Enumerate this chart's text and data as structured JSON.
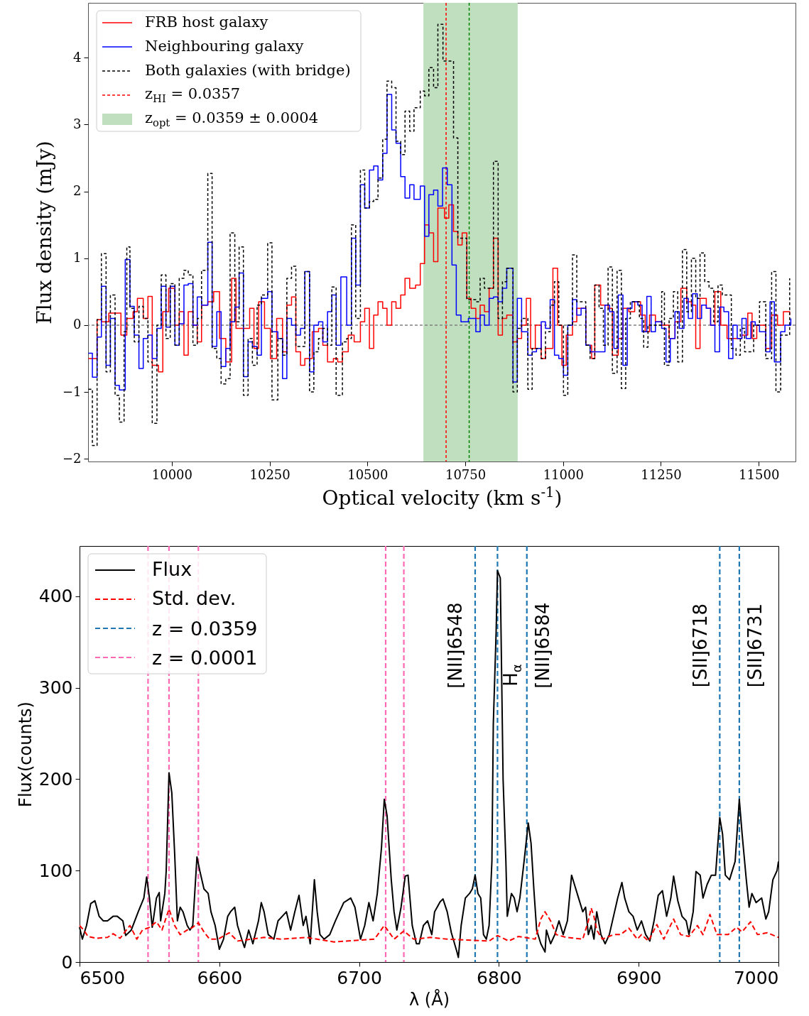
{
  "chart_data": [
    {
      "type": "step",
      "xlabel": "Optical velocity (km s$^{-1}$)",
      "ylabel": "Flux density (mJy)",
      "xlim": [
        9786,
        11594
      ],
      "ylim": [
        -2.04,
        4.82
      ],
      "xticks": [
        10000,
        10250,
        10500,
        10750,
        11000,
        11250,
        11500
      ],
      "yticks": [
        -2,
        -1,
        0,
        1,
        2,
        3,
        4
      ],
      "grid": false,
      "legend": "top left",
      "series": [
        {
          "name": "FRB host galaxy",
          "color": "#ff0000",
          "line_style": "solid",
          "x": [
            9787,
            9809,
            9820,
            9839,
            9870,
            9885,
            9901,
            9912,
            9927,
            9939,
            9950,
            9966,
            9977,
            9992,
            10008,
            10019,
            10031,
            10042,
            10054,
            10065,
            10076,
            10092,
            10107,
            10122,
            10138,
            10153,
            10164,
            10187,
            10199,
            10210,
            10222,
            10237,
            10252,
            10268,
            10283,
            10294,
            10306,
            10317,
            10329,
            10340,
            10359,
            10375,
            10386,
            10398,
            10413,
            10424,
            10436,
            10451,
            10466,
            10482,
            10493,
            10505,
            10516,
            10527,
            10539,
            10550,
            10562,
            10573,
            10585,
            10596,
            10608,
            10623,
            10635,
            10646,
            10657,
            10669,
            10680,
            10697,
            10708,
            10720,
            10731,
            10742,
            10754,
            10765,
            10777,
            10788,
            10799,
            10811,
            10822,
            10834,
            10845,
            10856,
            10872,
            10883,
            10894,
            10906,
            10917,
            10929,
            10944,
            10955,
            10974,
            10986,
            10997,
            11008,
            11024,
            11035,
            11058,
            11073,
            11081,
            11096,
            11115,
            11126,
            11141,
            11153,
            11168,
            11183,
            11198,
            11210,
            11221,
            11236,
            11252,
            11271,
            11286,
            11301,
            11316,
            11328,
            11339,
            11350,
            11366,
            11377,
            11388,
            11403,
            11419,
            11434,
            11457,
            11472,
            11483,
            11495,
            11518,
            11533,
            11548,
            11563,
            11579
          ],
          "values": [
            -0.5,
            0.08,
            0.05,
            0.18,
            -0.15,
            0.1,
            0.2,
            0.4,
            0.1,
            0.43,
            -0.6,
            -0.7,
            0.2,
            0.55,
            0.0,
            0.2,
            -0.45,
            0.2,
            0.0,
            -0.25,
            0.3,
            0.35,
            0.5,
            -0.2,
            -0.55,
            0.7,
            -0.05,
            -0.05,
            0.25,
            -0.35,
            0.35,
            -0.05,
            -0.5,
            0.1,
            -0.4,
            0.3,
            0.42,
            -0.4,
            -0.6,
            -0.5,
            -0.1,
            -0.05,
            -0.3,
            -0.55,
            -0.5,
            -0.55,
            -0.4,
            -0.15,
            -0.25,
            0.05,
            0.25,
            -0.35,
            0.15,
            0.35,
            0.25,
            0.0,
            0.35,
            0.25,
            0.45,
            0.7,
            0.55,
            0.6,
            0.92,
            1.5,
            1.38,
            0.95,
            1.75,
            1.6,
            1.8,
            1.4,
            1.2,
            1.38,
            0.4,
            0.25,
            0.1,
            0.3,
            0.2,
            0.55,
            1.3,
            -0.15,
            0.1,
            0.15,
            -0.25,
            -0.2,
            0.0,
            0.4,
            -0.35,
            0.0,
            -0.5,
            -0.35,
            0.85,
            0.0,
            -0.6,
            -0.15,
            0.05,
            0.25,
            -0.3,
            -0.5,
            0.6,
            0.3,
            0.25,
            -0.45,
            -0.2,
            0.25,
            0.2,
            0.35,
            0.15,
            -0.1,
            0.15,
            0.05,
            0.0,
            -0.2,
            0.05,
            0.55,
            0.35,
            0.3,
            -0.35,
            0.4,
            0.25,
            0.0,
            0.5,
            0.0,
            -0.2,
            -0.2,
            -0.15,
            0.18,
            -0.2,
            0.0,
            -0.35,
            0.15,
            0.0,
            0.2,
            0.15
          ]
        },
        {
          "name": "Neighbouring galaxy",
          "color": "#0000ff",
          "line_style": "solid",
          "x": [
            9787,
            9797,
            9809,
            9820,
            9832,
            9843,
            9855,
            9866,
            9881,
            9893,
            9904,
            9916,
            9927,
            9939,
            9950,
            9962,
            9973,
            9985,
            9996,
            10008,
            10019,
            10031,
            10042,
            10054,
            10065,
            10076,
            10092,
            10103,
            10115,
            10126,
            10138,
            10149,
            10161,
            10172,
            10183,
            10195,
            10206,
            10218,
            10229,
            10245,
            10256,
            10271,
            10283,
            10294,
            10306,
            10317,
            10329,
            10340,
            10352,
            10363,
            10375,
            10386,
            10398,
            10409,
            10420,
            10432,
            10447,
            10459,
            10470,
            10482,
            10493,
            10505,
            10516,
            10527,
            10539,
            10550,
            10562,
            10573,
            10585,
            10596,
            10608,
            10619,
            10635,
            10646,
            10657,
            10669,
            10680,
            10692,
            10704,
            10716,
            10727,
            10739,
            10758,
            10777,
            10788,
            10799,
            10811,
            10822,
            10834,
            10845,
            10856,
            10872,
            10883,
            10894,
            10910,
            10921,
            10932,
            10944,
            10955,
            10967,
            10978,
            10989,
            11001,
            11012,
            11024,
            11035,
            11046,
            11058,
            11069,
            11081,
            11092,
            11107,
            11119,
            11130,
            11141,
            11153,
            11164,
            11176,
            11191,
            11202,
            11214,
            11225,
            11236,
            11252,
            11263,
            11274,
            11286,
            11297,
            11309,
            11320,
            11331,
            11343,
            11354,
            11366,
            11377,
            11388,
            11400,
            11411,
            11423,
            11434,
            11445,
            11457,
            11468,
            11480,
            11491,
            11502,
            11518,
            11529,
            11540,
            11556,
            11567,
            11582
          ],
          "values": [
            -0.42,
            -0.78,
            -0.18,
            0.58,
            -0.6,
            0.1,
            -0.9,
            -0.97,
            0.98,
            0.28,
            -0.15,
            -0.65,
            -0.2,
            -0.15,
            -0.5,
            -0.05,
            0.58,
            -0.03,
            0.58,
            -0.3,
            0.02,
            0.6,
            0.62,
            0.0,
            0.42,
            0.3,
            1.24,
            -0.32,
            0.2,
            -0.62,
            -0.35,
            0.05,
            0.27,
            0.78,
            -0.77,
            -0.25,
            -0.32,
            -0.45,
            0.4,
            0.5,
            -0.1,
            -0.2,
            -0.8,
            0.1,
            0.0,
            -0.15,
            -0.05,
            0.8,
            -0.7,
            0.0,
            0.05,
            -0.25,
            0.2,
            0.45,
            -0.3,
            0.72,
            0.0,
            1.3,
            0.6,
            2.1,
            1.75,
            2.32,
            2.38,
            2.17,
            2.57,
            3.45,
            2.92,
            2.72,
            2.22,
            1.9,
            2.1,
            1.88,
            2.08,
            1.33,
            1.95,
            2.02,
            1.78,
            2.35,
            2.1,
            0.9,
            0.15,
            0.05,
            0.1,
            -0.1,
            0.15,
            0.0,
            0.4,
            0.42,
            0.35,
            0.55,
            0.85,
            -0.85,
            0.4,
            -0.1,
            -0.45,
            -0.4,
            -0.35,
            0.05,
            -0.05,
            0.38,
            -0.45,
            -0.5,
            -0.75,
            0.0,
            0.38,
            0.15,
            0.25,
            -0.3,
            -0.4,
            -0.4,
            -0.4,
            0.3,
            0.2,
            -0.35,
            0.45,
            -0.6,
            0.25,
            0.35,
            0.3,
            -0.1,
            0.43,
            -0.1,
            0.05,
            -0.05,
            -0.55,
            -0.2,
            0.2,
            -0.05,
            0.4,
            0.1,
            0.47,
            0.1,
            0.3,
            0.25,
            0.0,
            -0.4,
            0.27,
            0.2,
            -0.5,
            0.0,
            -0.2,
            0.1,
            -0.2,
            0.05,
            0.0,
            -0.1,
            -0.4,
            0.35,
            -0.55,
            -0.1,
            0.0,
            0.1
          ]
        },
        {
          "name": "Both galaxies (with bridge)",
          "color": "#000000",
          "line_style": "dashed",
          "x": [
            9787,
            9797,
            9809,
            9820,
            9832,
            9843,
            9855,
            9866,
            9878,
            9885,
            9893,
            9904,
            9916,
            9927,
            9939,
            9950,
            9962,
            9973,
            9985,
            9996,
            10008,
            10019,
            10031,
            10042,
            10054,
            10065,
            10076,
            10092,
            10103,
            10115,
            10126,
            10138,
            10149,
            10161,
            10172,
            10183,
            10195,
            10206,
            10218,
            10229,
            10245,
            10256,
            10271,
            10283,
            10294,
            10306,
            10317,
            10340,
            10352,
            10363,
            10375,
            10386,
            10398,
            10409,
            10420,
            10436,
            10447,
            10459,
            10470,
            10482,
            10493,
            10505,
            10516,
            10527,
            10539,
            10550,
            10562,
            10573,
            10585,
            10596,
            10608,
            10619,
            10635,
            10646,
            10657,
            10669,
            10680,
            10693,
            10720,
            10731,
            10754,
            10777,
            10788,
            10799,
            10822,
            10834,
            10845,
            10856,
            10872,
            10883,
            10894,
            10910,
            10921,
            10944,
            10955,
            10967,
            10978,
            10989,
            11001,
            11012,
            11024,
            11035,
            11058,
            11069,
            11081,
            11092,
            11103,
            11115,
            11126,
            11138,
            11149,
            11160,
            11172,
            11195,
            11206,
            11217,
            11252,
            11259,
            11271,
            11282,
            11293,
            11305,
            11316,
            11328,
            11339,
            11350,
            11362,
            11373,
            11385,
            11396,
            11407,
            11430,
            11442,
            11453,
            11464,
            11487,
            11502,
            11518,
            11533,
            11544,
            11556,
            11579
          ],
          "values": [
            -0.96,
            -1.8,
            0.08,
            1.07,
            -0.7,
            0.45,
            -1.05,
            -1.45,
            -0.1,
            1.17,
            0.25,
            -0.25,
            0.28,
            0.1,
            -0.55,
            -1.47,
            0.0,
            0.75,
            -0.2,
            0.62,
            -0.3,
            0.7,
            0.82,
            0.75,
            -0.3,
            0.1,
            0.82,
            2.27,
            -0.35,
            -0.5,
            -0.88,
            -0.8,
            1.38,
            0.05,
            1.17,
            -1.05,
            -0.2,
            -0.6,
            0.3,
            0.45,
            1.23,
            -1.12,
            -0.2,
            -0.45,
            0.7,
            0.88,
            -0.32,
            0.8,
            -1.0,
            -0.4,
            -0.2,
            -0.05,
            -0.3,
            0.57,
            -1.05,
            -0.25,
            -0.2,
            1.5,
            0.1,
            2.32,
            1.75,
            1.85,
            1.88,
            2.2,
            2.78,
            3.65,
            3.55,
            2.75,
            2.55,
            3.2,
            2.9,
            3.25,
            3.5,
            3.43,
            3.85,
            3.55,
            4.5,
            3.95,
            2.8,
            1.3,
            0.38,
            0.35,
            0.7,
            0.55,
            2.45,
            0.1,
            0.65,
            0.85,
            -1.0,
            -0.05,
            0.1,
            -0.96,
            -0.35,
            -0.5,
            -0.1,
            0.3,
            0.65,
            0.0,
            -1.05,
            0.0,
            1.05,
            0.35,
            -0.3,
            -0.5,
            0.6,
            0.25,
            -0.3,
            0.87,
            -0.72,
            0.82,
            -0.95,
            0.1,
            0.35,
            0.1,
            -0.33,
            0.0,
            0.5,
            -0.6,
            0.1,
            0.5,
            -0.55,
            1.13,
            0.2,
            1.0,
            0.4,
            1.08,
            0.65,
            0.55,
            0.05,
            0.6,
            0.45,
            -0.35,
            -0.45,
            -0.05,
            -0.4,
            0.0,
            0.35,
            -0.5,
            0.8,
            -1.0,
            -0.15,
            0.7
          ]
        }
      ],
      "ref_lines": [
        {
          "axis": "y",
          "value": 0,
          "color": "#808080",
          "line_style": "dashed"
        },
        {
          "axis": "x",
          "value": 10701,
          "color": "#ff0000",
          "line_style": "dashed"
        },
        {
          "axis": "x",
          "value": 10760,
          "color": "#008000",
          "line_style": "dashed"
        }
      ],
      "bands": [
        {
          "axis": "x",
          "from": 10643,
          "to": 10884,
          "color": "#bfdfbf"
        }
      ],
      "annotations": [
        "z$_{HI}$ = 0.0357",
        "z$_{opt}$ = 0.0359 ± 0.0004"
      ]
    },
    {
      "type": "line",
      "xlabel": "λ (Å)",
      "ylabel": "Flux(counts)",
      "xlim": [
        6500,
        7000
      ],
      "ylim": [
        0,
        455
      ],
      "xticks": [
        6500,
        6600,
        6700,
        6800,
        6900,
        7000
      ],
      "yticks": [
        0,
        100,
        200,
        300,
        400
      ],
      "grid": false,
      "legend": "top left",
      "series": [
        {
          "name": "Flux",
          "color": "#000000",
          "line_style": "solid",
          "x": [
            6500,
            6502,
            6505,
            6508,
            6511,
            6514,
            6517,
            6520,
            6524,
            6527,
            6531,
            6533,
            6537,
            6542,
            6546,
            6548,
            6550,
            6552,
            6555,
            6557,
            6558,
            6561,
            6562,
            6564,
            6566,
            6568,
            6570,
            6572,
            6574,
            6577,
            6579,
            6581,
            6584,
            6586,
            6589,
            6592,
            6594,
            6597,
            6600,
            6603,
            6606,
            6608,
            6611,
            6613,
            6616,
            6618,
            6621,
            6624,
            6628,
            6630,
            6632,
            6635,
            6639,
            6642,
            6645,
            6648,
            6651,
            6654,
            6657,
            6660,
            6662,
            6665,
            6668,
            6670,
            6672,
            6675,
            6679,
            6683,
            6686,
            6689,
            6694,
            6697,
            6701,
            6704,
            6707,
            6710,
            6713,
            6716,
            6718,
            6720,
            6723,
            6725,
            6727,
            6730,
            6733,
            6735,
            6738,
            6741,
            6743,
            6746,
            6749,
            6752,
            6754,
            6758,
            6760,
            6763,
            6766,
            6770,
            6771,
            6773,
            6776,
            6779,
            6781,
            6783,
            6785,
            6787,
            6789,
            6791,
            6793,
            6795,
            6796,
            6798,
            6799,
            6801,
            6802,
            6803,
            6805,
            6806,
            6809,
            6811,
            6813,
            6815,
            6818,
            6821,
            6823,
            6825,
            6827,
            6830,
            6833,
            6834,
            6837,
            6840,
            6843,
            6846,
            6849,
            6852,
            6854,
            6857,
            6860,
            6862,
            6864,
            6866,
            6868,
            6870,
            6873,
            6876,
            6879,
            6882,
            6885,
            6888,
            6890,
            6893,
            6896,
            6899,
            6902,
            6905,
            6908,
            6911,
            6914,
            6917,
            6920,
            6923,
            6925,
            6928,
            6931,
            6934,
            6936,
            6939,
            6941,
            6944,
            6946,
            6949,
            6952,
            6955,
            6958,
            6960,
            6962,
            6965,
            6966,
            6969,
            6972,
            6974,
            6977,
            6979,
            6981,
            6984,
            6988,
            6991,
            6993,
            6996,
            6999,
            7000
          ],
          "values": [
            38,
            25,
            40,
            64,
            67,
            50,
            45,
            45,
            50,
            50,
            45,
            29,
            35,
            55,
            70,
            93,
            70,
            38,
            70,
            76,
            45,
            75,
            100,
            207,
            185,
            120,
            45,
            60,
            55,
            40,
            35,
            40,
            115,
            100,
            80,
            75,
            55,
            40,
            14,
            25,
            50,
            55,
            60,
            40,
            25,
            16,
            35,
            20,
            45,
            65,
            55,
            30,
            25,
            45,
            50,
            55,
            35,
            55,
            73,
            40,
            50,
            20,
            90,
            55,
            30,
            25,
            30,
            45,
            55,
            65,
            70,
            60,
            25,
            40,
            65,
            45,
            75,
            125,
            178,
            160,
            90,
            55,
            35,
            60,
            94,
            95,
            40,
            20,
            20,
            40,
            45,
            30,
            55,
            66,
            69,
            55,
            32,
            11,
            5,
            40,
            70,
            75,
            80,
            95,
            75,
            70,
            30,
            25,
            40,
            110,
            260,
            360,
            428,
            420,
            310,
            200,
            110,
            50,
            75,
            70,
            55,
            70,
            110,
            152,
            130,
            80,
            35,
            20,
            11,
            35,
            20,
            30,
            45,
            30,
            45,
            95,
            85,
            70,
            55,
            60,
            30,
            40,
            25,
            55,
            30,
            20,
            30,
            50,
            70,
            87,
            70,
            55,
            50,
            35,
            45,
            30,
            23,
            45,
            73,
            78,
            50,
            70,
            94,
            67,
            50,
            45,
            30,
            55,
            99,
            95,
            70,
            85,
            95,
            95,
            158,
            140,
            95,
            90,
            95,
            110,
            178,
            140,
            90,
            60,
            75,
            65,
            70,
            47,
            55,
            90,
            100,
            110
          ]
        },
        {
          "name": "Std. dev.",
          "color": "#ff0000",
          "line_style": "dashed",
          "x": [
            6500,
            6503,
            6506,
            6512,
            6520,
            6524,
            6529,
            6536,
            6541,
            6545,
            6550,
            6555,
            6559,
            6564,
            6568,
            6572,
            6577,
            6581,
            6585,
            6589,
            6593,
            6599,
            6607,
            6613,
            6623,
            6632,
            6644,
            6662,
            6682,
            6711,
            6718,
            6725,
            6732,
            6739,
            6751,
            6763,
            6793,
            6799,
            6807,
            6814,
            6826,
            6830,
            6833,
            6837,
            6841,
            6848,
            6860,
            6864,
            6866,
            6868,
            6870,
            6874,
            6882,
            6887,
            6893,
            6899,
            6902,
            6907,
            6913,
            6918,
            6925,
            6930,
            6936,
            6942,
            6946,
            6951,
            6956,
            6964,
            6970,
            6974,
            6980,
            6985,
            6992,
            7000
          ],
          "values": [
            40,
            35,
            28,
            26,
            27,
            31,
            26,
            40,
            25,
            35,
            38,
            44,
            35,
            58,
            40,
            30,
            35,
            38,
            43,
            33,
            25,
            25,
            32,
            23,
            25,
            27,
            25,
            27,
            22,
            25,
            40,
            25,
            34,
            25,
            27,
            25,
            23,
            29,
            23,
            28,
            25,
            47,
            55,
            45,
            30,
            27,
            25,
            45,
            59,
            50,
            35,
            25,
            30,
            30,
            37,
            25,
            30,
            23,
            41,
            25,
            47,
            30,
            28,
            40,
            30,
            52,
            30,
            30,
            38,
            33,
            44,
            30,
            32,
            27
          ]
        }
      ],
      "ref_lines": [
        {
          "axis": "x",
          "value": 6783,
          "color": "#1f77b4",
          "line_style": "dashed"
        },
        {
          "axis": "x",
          "value": 6799,
          "color": "#1f77b4",
          "line_style": "dashed"
        },
        {
          "axis": "x",
          "value": 6820,
          "color": "#1f77b4",
          "line_style": "dashed"
        },
        {
          "axis": "x",
          "value": 6958,
          "color": "#1f77b4",
          "line_style": "dashed"
        },
        {
          "axis": "x",
          "value": 6972,
          "color": "#1f77b4",
          "line_style": "dashed"
        },
        {
          "axis": "x",
          "value": 6549,
          "color": "#ff69b4",
          "line_style": "dashed"
        },
        {
          "axis": "x",
          "value": 6564,
          "color": "#ff69b4",
          "line_style": "dashed"
        },
        {
          "axis": "x",
          "value": 6585,
          "color": "#ff69b4",
          "line_style": "dashed"
        },
        {
          "axis": "x",
          "value": 6719,
          "color": "#ff69b4",
          "line_style": "dashed"
        },
        {
          "axis": "x",
          "value": 6732,
          "color": "#ff69b4",
          "line_style": "dashed"
        }
      ],
      "annotations": [
        "z = 0.0359",
        "z = 0.0001",
        "[NII]6548",
        "H$_{α}$",
        "[NII]6584",
        "[SII]6718",
        "[SII]6731"
      ]
    }
  ]
}
